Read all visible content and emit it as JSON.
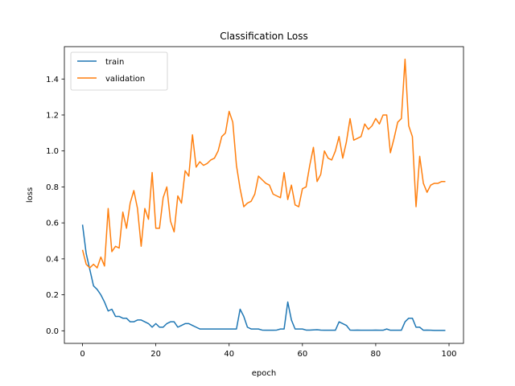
{
  "chart_data": {
    "type": "line",
    "title": "Classification Loss",
    "xlabel": "epoch",
    "ylabel": "loss",
    "xlim": [
      -4.95,
      103.95
    ],
    "ylim": [
      -0.07,
      1.58
    ],
    "xticks": [
      0,
      20,
      40,
      60,
      80,
      100
    ],
    "yticks": [
      0.0,
      0.2,
      0.4,
      0.6,
      0.8,
      1.0,
      1.2,
      1.4
    ],
    "xtick_labels": [
      "0",
      "20",
      "40",
      "60",
      "80",
      "100"
    ],
    "ytick_labels": [
      "0.0",
      "0.2",
      "0.4",
      "0.6",
      "0.8",
      "1.0",
      "1.2",
      "1.4"
    ],
    "grid": false,
    "legend_position": "top-left",
    "x": [
      0,
      1,
      2,
      3,
      4,
      5,
      6,
      7,
      8,
      9,
      10,
      11,
      12,
      13,
      14,
      15,
      16,
      17,
      18,
      19,
      20,
      21,
      22,
      23,
      24,
      25,
      26,
      27,
      28,
      29,
      30,
      31,
      32,
      33,
      34,
      35,
      36,
      37,
      38,
      39,
      40,
      41,
      42,
      43,
      44,
      45,
      46,
      47,
      48,
      49,
      50,
      51,
      52,
      53,
      54,
      55,
      56,
      57,
      58,
      59,
      60,
      61,
      62,
      63,
      64,
      65,
      66,
      67,
      68,
      69,
      70,
      71,
      72,
      73,
      74,
      75,
      76,
      77,
      78,
      79,
      80,
      81,
      82,
      83,
      84,
      85,
      86,
      87,
      88,
      89,
      90,
      91,
      92,
      93,
      94,
      95,
      96,
      97,
      98,
      99
    ],
    "series": [
      {
        "name": "train",
        "color": "#1f77b4",
        "values": [
          0.59,
          0.43,
          0.34,
          0.25,
          0.23,
          0.2,
          0.16,
          0.11,
          0.12,
          0.08,
          0.08,
          0.07,
          0.07,
          0.05,
          0.05,
          0.06,
          0.06,
          0.05,
          0.04,
          0.02,
          0.04,
          0.02,
          0.02,
          0.04,
          0.05,
          0.05,
          0.02,
          0.03,
          0.04,
          0.04,
          0.03,
          0.02,
          0.01,
          0.01,
          0.01,
          0.01,
          0.01,
          0.01,
          0.01,
          0.01,
          0.01,
          0.01,
          0.01,
          0.12,
          0.08,
          0.02,
          0.01,
          0.01,
          0.01,
          0.004,
          0.003,
          0.003,
          0.003,
          0.004,
          0.01,
          0.01,
          0.16,
          0.06,
          0.01,
          0.01,
          0.01,
          0.004,
          0.004,
          0.005,
          0.006,
          0.004,
          0.003,
          0.003,
          0.003,
          0.003,
          0.05,
          0.04,
          0.03,
          0.004,
          0.003,
          0.004,
          0.003,
          0.003,
          0.003,
          0.003,
          0.004,
          0.003,
          0.003,
          0.01,
          0.003,
          0.003,
          0.003,
          0.003,
          0.05,
          0.07,
          0.07,
          0.02,
          0.02,
          0.003,
          0.004,
          0.003,
          0.002,
          0.002,
          0.002,
          0.002
        ]
      },
      {
        "name": "validation",
        "color": "#ff7f0e",
        "values": [
          0.45,
          0.37,
          0.35,
          0.37,
          0.35,
          0.41,
          0.36,
          0.68,
          0.44,
          0.47,
          0.46,
          0.66,
          0.57,
          0.71,
          0.78,
          0.68,
          0.47,
          0.68,
          0.62,
          0.88,
          0.57,
          0.57,
          0.74,
          0.8,
          0.61,
          0.55,
          0.75,
          0.71,
          0.89,
          0.86,
          1.09,
          0.91,
          0.94,
          0.92,
          0.93,
          0.95,
          0.96,
          1.0,
          1.08,
          1.1,
          1.22,
          1.16,
          0.92,
          0.79,
          0.69,
          0.71,
          0.72,
          0.76,
          0.86,
          0.84,
          0.82,
          0.81,
          0.76,
          0.75,
          0.74,
          0.88,
          0.73,
          0.81,
          0.7,
          0.69,
          0.79,
          0.8,
          0.92,
          1.02,
          0.83,
          0.87,
          1.0,
          0.96,
          0.95,
          1.0,
          1.08,
          0.96,
          1.05,
          1.18,
          1.06,
          1.07,
          1.08,
          1.15,
          1.12,
          1.14,
          1.18,
          1.15,
          1.2,
          1.2,
          0.99,
          1.07,
          1.16,
          1.18,
          1.51,
          1.14,
          1.08,
          0.69,
          0.97,
          0.82,
          0.77,
          0.81,
          0.82,
          0.82,
          0.83,
          0.83
        ]
      }
    ],
    "legend": [
      {
        "name": "train",
        "color": "#1f77b4"
      },
      {
        "name": "validation",
        "color": "#ff7f0e"
      }
    ]
  }
}
